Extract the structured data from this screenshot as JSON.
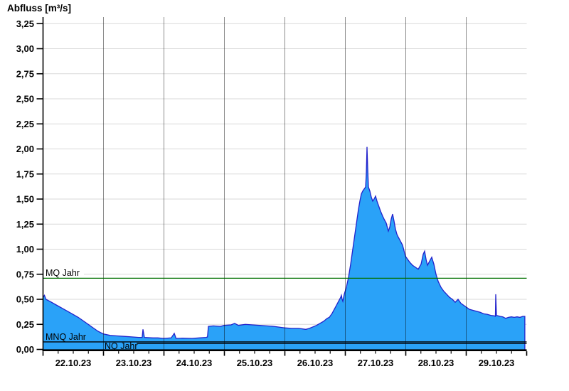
{
  "title": "Abfluss [m³/s]",
  "chart_data": {
    "type": "area",
    "title": "Abfluss [m³/s]",
    "ylabel": "Abfluss [m³/s]",
    "xlabel": "",
    "ylim": [
      0,
      3.25
    ],
    "y_ticks": [
      0,
      0.25,
      0.5,
      0.75,
      1.0,
      1.25,
      1.5,
      1.75,
      2.0,
      2.25,
      2.5,
      2.75,
      3.0,
      3.25
    ],
    "y_tick_labels": [
      "0,00",
      "0,25",
      "0,50",
      "0,75",
      "1,00",
      "1,25",
      "1,50",
      "1,75",
      "2,00",
      "2,25",
      "2,50",
      "2,75",
      "3,00",
      "3,25"
    ],
    "x_days": [
      0,
      8
    ],
    "x_minor_tick_step_days": 0.25,
    "x_tick_labels": [
      "22.10.23",
      "23.10.23",
      "24.10.23",
      "25.10.23",
      "26.10.23",
      "27.10.23",
      "28.10.23",
      "29.10.23"
    ],
    "grid": true,
    "legend": "none",
    "series": [
      {
        "name": "Abfluss",
        "unit": "m³/s",
        "points": [
          [
            0,
            0.52
          ],
          [
            0.024,
            0.54
          ],
          [
            0.047,
            0.5
          ],
          [
            0.112,
            0.48
          ],
          [
            0.229,
            0.44
          ],
          [
            0.347,
            0.4
          ],
          [
            0.465,
            0.36
          ],
          [
            0.582,
            0.32
          ],
          [
            0.7,
            0.27
          ],
          [
            0.818,
            0.22
          ],
          [
            0.912,
            0.18
          ],
          [
            0.994,
            0.155
          ],
          [
            1.112,
            0.14
          ],
          [
            1.229,
            0.135
          ],
          [
            1.347,
            0.13
          ],
          [
            1.465,
            0.125
          ],
          [
            1.582,
            0.12
          ],
          [
            1.64,
            0.12
          ],
          [
            1.653,
            0.2
          ],
          [
            1.676,
            0.12
          ],
          [
            1.818,
            0.115
          ],
          [
            1.9,
            0.115
          ],
          [
            1.994,
            0.11
          ],
          [
            2.12,
            0.115
          ],
          [
            2.171,
            0.16
          ],
          [
            2.2,
            0.11
          ],
          [
            2.3,
            0.112
          ],
          [
            2.465,
            0.11
          ],
          [
            2.582,
            0.115
          ],
          [
            2.7,
            0.12
          ],
          [
            2.72,
            0.125
          ],
          [
            2.735,
            0.23
          ],
          [
            2.818,
            0.235
          ],
          [
            2.935,
            0.23
          ],
          [
            2.994,
            0.24
          ],
          [
            3.112,
            0.245
          ],
          [
            3.17,
            0.26
          ],
          [
            3.23,
            0.24
          ],
          [
            3.347,
            0.25
          ],
          [
            3.465,
            0.245
          ],
          [
            3.582,
            0.24
          ],
          [
            3.7,
            0.235
          ],
          [
            3.818,
            0.23
          ],
          [
            3.935,
            0.22
          ],
          [
            3.994,
            0.215
          ],
          [
            4.112,
            0.21
          ],
          [
            4.229,
            0.21
          ],
          [
            4.347,
            0.2
          ],
          [
            4.406,
            0.21
          ],
          [
            4.465,
            0.225
          ],
          [
            4.524,
            0.24
          ],
          [
            4.582,
            0.26
          ],
          [
            4.641,
            0.28
          ],
          [
            4.7,
            0.31
          ],
          [
            4.735,
            0.32
          ],
          [
            4.782,
            0.36
          ],
          [
            4.818,
            0.4
          ],
          [
            4.853,
            0.44
          ],
          [
            4.888,
            0.48
          ],
          [
            4.924,
            0.52
          ],
          [
            4.935,
            0.54
          ],
          [
            4.947,
            0.5
          ],
          [
            4.959,
            0.48
          ],
          [
            4.982,
            0.55
          ],
          [
            5.018,
            0.62
          ],
          [
            5.053,
            0.72
          ],
          [
            5.088,
            0.85
          ],
          [
            5.124,
            1.0
          ],
          [
            5.159,
            1.15
          ],
          [
            5.194,
            1.3
          ],
          [
            5.218,
            1.4
          ],
          [
            5.241,
            1.48
          ],
          [
            5.265,
            1.55
          ],
          [
            5.288,
            1.58
          ],
          [
            5.312,
            1.6
          ],
          [
            5.335,
            1.62
          ],
          [
            5.347,
            1.75
          ],
          [
            5.359,
            2.02
          ],
          [
            5.371,
            1.8
          ],
          [
            5.382,
            1.62
          ],
          [
            5.406,
            1.58
          ],
          [
            5.429,
            1.52
          ],
          [
            5.453,
            1.48
          ],
          [
            5.476,
            1.5
          ],
          [
            5.5,
            1.53
          ],
          [
            5.524,
            1.48
          ],
          [
            5.547,
            1.44
          ],
          [
            5.582,
            1.38
          ],
          [
            5.618,
            1.33
          ],
          [
            5.641,
            1.3
          ],
          [
            5.676,
            1.26
          ],
          [
            5.712,
            1.18
          ],
          [
            5.735,
            1.22
          ],
          [
            5.759,
            1.3
          ],
          [
            5.782,
            1.35
          ],
          [
            5.806,
            1.28
          ],
          [
            5.829,
            1.2
          ],
          [
            5.853,
            1.15
          ],
          [
            5.876,
            1.12
          ],
          [
            5.912,
            1.08
          ],
          [
            5.947,
            1.04
          ],
          [
            5.994,
            0.93
          ],
          [
            6.029,
            0.9
          ],
          [
            6.065,
            0.87
          ],
          [
            6.112,
            0.84
          ],
          [
            6.159,
            0.82
          ],
          [
            6.206,
            0.8
          ],
          [
            6.253,
            0.85
          ],
          [
            6.288,
            0.95
          ],
          [
            6.312,
            0.98
          ],
          [
            6.335,
            0.9
          ],
          [
            6.359,
            0.84
          ],
          [
            6.394,
            0.88
          ],
          [
            6.429,
            0.92
          ],
          [
            6.465,
            0.85
          ],
          [
            6.5,
            0.75
          ],
          [
            6.535,
            0.68
          ],
          [
            6.582,
            0.62
          ],
          [
            6.629,
            0.58
          ],
          [
            6.676,
            0.55
          ],
          [
            6.724,
            0.52
          ],
          [
            6.771,
            0.5
          ],
          [
            6.818,
            0.47
          ],
          [
            6.865,
            0.5
          ],
          [
            6.912,
            0.46
          ],
          [
            6.959,
            0.44
          ],
          [
            7.006,
            0.42
          ],
          [
            7.053,
            0.4
          ],
          [
            7.112,
            0.39
          ],
          [
            7.171,
            0.38
          ],
          [
            7.229,
            0.37
          ],
          [
            7.288,
            0.355
          ],
          [
            7.347,
            0.35
          ],
          [
            7.406,
            0.34
          ],
          [
            7.465,
            0.335
          ],
          [
            7.482,
            0.33
          ],
          [
            7.488,
            0.55
          ],
          [
            7.5,
            0.34
          ],
          [
            7.559,
            0.33
          ],
          [
            7.606,
            0.325
          ],
          [
            7.653,
            0.31
          ],
          [
            7.7,
            0.32
          ],
          [
            7.747,
            0.325
          ],
          [
            7.794,
            0.32
          ],
          [
            7.841,
            0.325
          ],
          [
            7.888,
            0.32
          ],
          [
            7.935,
            0.33
          ],
          [
            7.97,
            0.33
          ]
        ]
      }
    ],
    "reference_lines": [
      {
        "id": "mq",
        "label": "MQ Jahr",
        "value": 0.71,
        "color": "#007000",
        "start_day": 0,
        "end_day": 8
      },
      {
        "id": "mnq",
        "label": "MNQ Jahr",
        "value": 0.075,
        "color": "#000000",
        "start_day": 0,
        "end_day": 8
      },
      {
        "id": "nq",
        "label": "NQ Jahr",
        "value": 0.06,
        "color": "#000000",
        "start_day": 1.55,
        "end_day": 8
      }
    ],
    "colors": {
      "area_fill": "#2aa2f8",
      "area_stroke": "#2222cc",
      "h_grid": "#d9d9d9",
      "v_grid": "rgba(0,0,0,0.45)",
      "axis": "#000000",
      "background": "#ffffff"
    }
  }
}
